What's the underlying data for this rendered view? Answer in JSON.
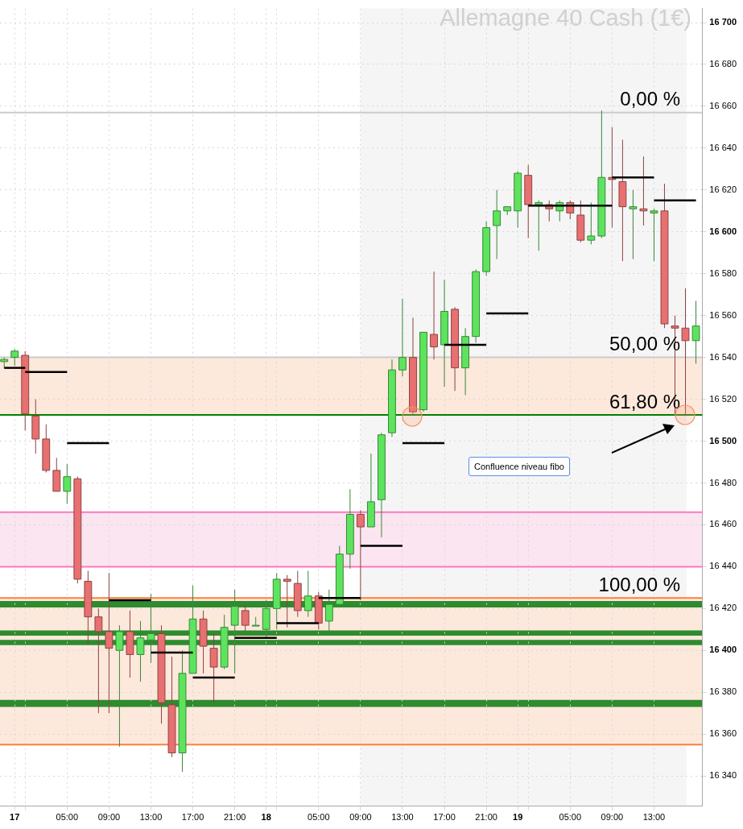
{
  "chart_data": {
    "type": "candlestick",
    "title": "Allemagne 40 Cash (1€)",
    "x": [
      "--01-16T23:00",
      "--01-17T00:00",
      "--01-17T01:00",
      "--01-17T02:00",
      "--01-17T03:00",
      "--01-17T04:00",
      "--01-17T05:00",
      "--01-17T06:00",
      "--01-17T07:00",
      "--01-17T08:00",
      "--01-17T09:00",
      "--01-17T10:00",
      "--01-17T11:00",
      "--01-17T12:00",
      "--01-17T13:00",
      "--01-17T14:00",
      "--01-17T15:00",
      "--01-17T16:00",
      "--01-17T17:00",
      "--01-17T18:00",
      "--01-17T19:00",
      "--01-17T20:00",
      "--01-17T21:00",
      "--01-17T22:00",
      "--01-17T23:00",
      "--01-18T00:00",
      "--01-18T01:00",
      "--01-18T02:00",
      "--01-18T03:00",
      "--01-18T04:00",
      "--01-18T05:00",
      "--01-18T06:00",
      "--01-18T07:00",
      "--01-18T08:00",
      "--01-18T09:00",
      "--01-18T10:00",
      "--01-18T11:00",
      "--01-18T12:00",
      "--01-18T13:00",
      "--01-18T14:00",
      "--01-18T15:00",
      "--01-18T16:00",
      "--01-18T17:00",
      "--01-18T18:00",
      "--01-18T19:00",
      "--01-18T20:00",
      "--01-18T21:00",
      "--01-18T22:00",
      "--01-18T23:00",
      "--01-19T00:00",
      "--01-19T01:00",
      "--01-19T02:00",
      "--01-19T03:00",
      "--01-19T04:00",
      "--01-19T05:00",
      "--01-19T06:00",
      "--01-19T07:00",
      "--01-19T08:00",
      "--01-19T09:00",
      "--01-19T10:00",
      "--01-19T11:00",
      "--01-19T12:00",
      "--01-19T13:00",
      "--01-19T14:00",
      "--01-19T15:00",
      "--01-19T16:00",
      "--01-19T17:00"
    ],
    "ohlc": [
      [
        16538,
        16540,
        16535,
        16539
      ],
      [
        16540,
        16544,
        16536,
        16543
      ],
      [
        16541,
        16543,
        16505,
        16513
      ],
      [
        16512,
        16520,
        16494,
        16501
      ],
      [
        16501,
        16508,
        16485,
        16486
      ],
      [
        16486,
        16492,
        16476,
        16476
      ],
      [
        16476,
        16489,
        16470,
        16483
      ],
      [
        16482,
        16483,
        16432,
        16434
      ],
      [
        16433,
        16438,
        16403,
        16416
      ],
      [
        16416,
        16420,
        16370,
        16409
      ],
      [
        16409,
        16437,
        16370,
        16401
      ],
      [
        16400,
        16412,
        16354,
        16409
      ],
      [
        16409,
        16419,
        16387,
        16398
      ],
      [
        16398,
        16414,
        16385,
        16406
      ],
      [
        16405,
        16427,
        16394,
        16408
      ],
      [
        16408,
        16412,
        16365,
        16375
      ],
      [
        16374,
        16397,
        16349,
        16351
      ],
      [
        16351,
        16400,
        16342,
        16389
      ],
      [
        16389,
        16431,
        16389,
        16415
      ],
      [
        16415,
        16419,
        16389,
        16402
      ],
      [
        16401,
        16408,
        16375,
        16392
      ],
      [
        16392,
        16417,
        16391,
        16411
      ],
      [
        16412,
        16429,
        16389,
        16421
      ],
      [
        16419,
        16422,
        16409,
        16412
      ],
      [
        16412,
        16416,
        16412,
        16412
      ],
      [
        16410,
        16424,
        16406,
        16420
      ],
      [
        16420,
        16437,
        16410,
        16434
      ],
      [
        16434,
        16436,
        16411,
        16433
      ],
      [
        16432,
        16438,
        16416,
        16419
      ],
      [
        16419,
        16438,
        16416,
        16426
      ],
      [
        16426,
        16428,
        16410,
        16413
      ],
      [
        16414,
        16429,
        16408,
        16422
      ],
      [
        16422,
        16450,
        16422,
        16446
      ],
      [
        16446,
        16477,
        16439,
        16465
      ],
      [
        16465,
        16467,
        16424,
        16459
      ],
      [
        16459,
        16494,
        16459,
        16471
      ],
      [
        16472,
        16504,
        16454,
        16503
      ],
      [
        16504,
        16539,
        16502,
        16534
      ],
      [
        16534,
        16568,
        16531,
        16540
      ],
      [
        16540,
        16559,
        16513,
        16514
      ],
      [
        16515,
        16552,
        16514,
        16552
      ],
      [
        16551,
        16581,
        16539,
        16545
      ],
      [
        16546,
        16577,
        16526,
        16562
      ],
      [
        16563,
        16564,
        16524,
        16535
      ],
      [
        16535,
        16554,
        16522,
        16550
      ],
      [
        16550,
        16582,
        16547,
        16581
      ],
      [
        16581,
        16605,
        16579,
        16602
      ],
      [
        16603,
        16620,
        16587,
        16610
      ],
      [
        16610,
        16612,
        16608,
        16612
      ],
      [
        16610,
        16629,
        16602,
        16628
      ],
      [
        16627,
        16632,
        16597,
        16613
      ],
      [
        16613,
        16615,
        16591,
        16614
      ],
      [
        16613,
        16615,
        16605,
        16611
      ],
      [
        16610,
        16615,
        16605,
        16614
      ],
      [
        16614,
        16615,
        16606,
        16609
      ],
      [
        16608,
        16615,
        16595,
        16596
      ],
      [
        16596,
        16614,
        16594,
        16598
      ],
      [
        16598,
        16658,
        16597,
        16626
      ],
      [
        16626,
        16650,
        16602,
        16625
      ],
      [
        16624,
        16644,
        16586,
        16612
      ],
      [
        16611,
        16620,
        16587,
        16612
      ],
      [
        16611,
        16636,
        16603,
        16610
      ],
      [
        16609,
        16611,
        16586,
        16610
      ],
      [
        16610,
        16623,
        16554,
        16556
      ],
      [
        16555,
        16560,
        16513,
        16554
      ],
      [
        16554,
        16573,
        16512,
        16548
      ],
      [
        16548,
        16567,
        16537,
        16555
      ]
    ],
    "colors": [
      "#5ee35e",
      "#5ee35e",
      "#e87070",
      "#e87070",
      "#e87070",
      "#e87070",
      "#5ee35e",
      "#e87070",
      "#e87070",
      "#e87070",
      "#e87070",
      "#5ee35e",
      "#e87070",
      "#5ee35e",
      "#5ee35e",
      "#e87070",
      "#e87070",
      "#5ee35e",
      "#5ee35e",
      "#e87070",
      "#e87070",
      "#5ee35e",
      "#5ee35e",
      "#e87070",
      "#5ee35e",
      "#5ee35e",
      "#5ee35e",
      "#e87070",
      "#e87070",
      "#5ee35e",
      "#e87070",
      "#5ee35e",
      "#5ee35e",
      "#5ee35e",
      "#e87070",
      "#5ee35e",
      "#5ee35e",
      "#5ee35e",
      "#5ee35e",
      "#e87070",
      "#5ee35e",
      "#e87070",
      "#5ee35e",
      "#e87070",
      "#5ee35e",
      "#5ee35e",
      "#5ee35e",
      "#5ee35e",
      "#5ee35e",
      "#5ee35e",
      "#e87070",
      "#5ee35e",
      "#e87070",
      "#5ee35e",
      "#e87070",
      "#e87070",
      "#5ee35e",
      "#5ee35e",
      "#e87070",
      "#e87070",
      "#5ee35e",
      "#e87070",
      "#5ee35e",
      "#e87070",
      "#e87070",
      "#e87070",
      "#5ee35e"
    ],
    "series": [
      {
        "type": "line",
        "color": "#000000",
        "x": [
          "--01-16T23:00",
          "--01-17T01:00"
        ],
        "values": [
          16535,
          16535
        ]
      },
      {
        "type": "line",
        "color": "#000000",
        "x": [
          "--01-17T01:00",
          "--01-17T05:00"
        ],
        "values": [
          16533,
          16533
        ]
      },
      {
        "type": "line",
        "color": "#000000",
        "x": [
          "--01-17T05:00",
          "--01-17T09:00"
        ],
        "values": [
          16499,
          16499
        ]
      },
      {
        "type": "line",
        "color": "#000000",
        "x": [
          "--01-17T09:00",
          "--01-17T13:00"
        ],
        "values": [
          16424,
          16424
        ]
      },
      {
        "type": "line",
        "color": "#000000",
        "x": [
          "--01-17T13:00",
          "--01-17T17:00"
        ],
        "values": [
          16399,
          16399
        ]
      },
      {
        "type": "line",
        "color": "#000000",
        "x": [
          "--01-17T17:00",
          "--01-17T21:00"
        ],
        "values": [
          16387,
          16387
        ]
      },
      {
        "type": "line",
        "color": "#000000",
        "x": [
          "--01-17T21:00",
          "--01-18T01:00"
        ],
        "values": [
          16406,
          16406
        ]
      },
      {
        "type": "line",
        "color": "#000000",
        "x": [
          "--01-18T01:00",
          "--01-18T05:00"
        ],
        "values": [
          16413,
          16413
        ]
      },
      {
        "type": "line",
        "color": "#000000",
        "x": [
          "--01-18T05:00",
          "--01-18T09:00"
        ],
        "values": [
          16425,
          16425
        ]
      },
      {
        "type": "line",
        "color": "#000000",
        "x": [
          "--01-18T09:00",
          "--01-18T13:00"
        ],
        "values": [
          16450,
          16450
        ]
      },
      {
        "type": "line",
        "color": "#000000",
        "x": [
          "--01-18T13:00",
          "--01-18T17:00"
        ],
        "values": [
          16499,
          16499
        ]
      },
      {
        "type": "line",
        "color": "#000000",
        "x": [
          "--01-18T17:00",
          "--01-18T21:00"
        ],
        "values": [
          16546,
          16546
        ]
      },
      {
        "type": "line",
        "color": "#000000",
        "x": [
          "--01-18T21:00",
          "--01-19T01:00"
        ],
        "values": [
          16561,
          16561
        ]
      },
      {
        "type": "line",
        "color": "#000000",
        "x": [
          "--01-19T01:00",
          "--01-19T09:00"
        ],
        "values": [
          16612.5,
          16612.5
        ]
      },
      {
        "type": "line",
        "color": "#000000",
        "x": [
          "--01-19T09:00",
          "--01-19T13:00"
        ],
        "values": [
          16626,
          16626
        ]
      },
      {
        "type": "line",
        "color": "#000000",
        "x": [
          "--01-19T13:00",
          "--01-19T17:00"
        ],
        "values": [
          16615,
          16615
        ]
      }
    ],
    "xlim": [
      "--01-16T22:36",
      "--01-19T17:36"
    ],
    "xticks": [
      {
        "value": "--01-17T00:00",
        "label": "17"
      },
      {
        "value": "--01-17T01:00",
        "label": null
      },
      {
        "value": "--01-17T05:00",
        "label": "05:00"
      },
      {
        "value": "--01-17T09:00",
        "label": "09:00"
      },
      {
        "value": "--01-17T13:00",
        "label": "13:00"
      },
      {
        "value": "--01-17T17:00",
        "label": "17:00"
      },
      {
        "value": "--01-17T21:00",
        "label": "21:00"
      },
      {
        "value": "--01-18T00:00",
        "label": "18"
      },
      {
        "value": "--01-18T01:00",
        "label": null
      },
      {
        "value": "--01-18T05:00",
        "label": "05:00"
      },
      {
        "value": "--01-18T09:00",
        "label": "09:00"
      },
      {
        "value": "--01-18T13:00",
        "label": "13:00"
      },
      {
        "value": "--01-18T17:00",
        "label": "17:00"
      },
      {
        "value": "--01-18T21:00",
        "label": "21:00"
      },
      {
        "value": "--01-19T00:00",
        "label": "19"
      },
      {
        "value": "--01-19T01:00",
        "label": null
      },
      {
        "value": "--01-19T05:00",
        "label": "05:00"
      },
      {
        "value": "--01-19T09:00",
        "label": "09:00"
      },
      {
        "value": "--01-19T13:00",
        "label": "13:00"
      }
    ],
    "ylim": [
      16325.5,
      16706.7
    ],
    "yticks": [
      {
        "value": 16340,
        "label": "16 340"
      },
      {
        "value": 16360,
        "label": "16 360"
      },
      {
        "value": 16380,
        "label": "16 380"
      },
      {
        "value": 16400,
        "label": "16 400"
      },
      {
        "value": 16420,
        "label": "16 420"
      },
      {
        "value": 16440,
        "label": "16 440"
      },
      {
        "value": 16460,
        "label": "16 460"
      },
      {
        "value": 16480,
        "label": "16 480"
      },
      {
        "value": 16500,
        "label": "16 500"
      },
      {
        "value": 16520,
        "label": "16 520"
      },
      {
        "value": 16540,
        "label": "16 540"
      },
      {
        "value": 16560,
        "label": "16 560"
      },
      {
        "value": 16580,
        "label": "16 580"
      },
      {
        "value": 16600,
        "label": "16 600"
      },
      {
        "value": 16620,
        "label": "16 620"
      },
      {
        "value": 16640,
        "label": "16 640"
      },
      {
        "value": 16660,
        "label": "16 660"
      },
      {
        "value": 16680,
        "label": "16 680"
      },
      {
        "value": 16700,
        "label": "16 700"
      }
    ],
    "grid": true,
    "marker": "none",
    "bands": [
      {
        "axis": "x",
        "from": "--01-18T09:00",
        "to": "--01-19T16:06",
        "color": "#f5f5f5"
      },
      {
        "axis": "y",
        "from": 16512.5,
        "to": 16540,
        "color": "#fde8dc"
      },
      {
        "axis": "y",
        "from": 16355,
        "to": 16425,
        "color": "#fde8dc"
      },
      {
        "axis": "y",
        "from": 16440,
        "to": 16466,
        "color": "#fbe5f1"
      },
      {
        "axis": "y",
        "from": 16420.5,
        "to": 16423.6,
        "color": "#2e8b2e"
      },
      {
        "axis": "y",
        "from": 16407,
        "to": 16409.5,
        "color": "#2e8b2e"
      },
      {
        "axis": "y",
        "from": 16402.5,
        "to": 16405,
        "color": "#2e8b2e"
      },
      {
        "axis": "y",
        "from": 16373,
        "to": 16376.3,
        "color": "#2e8b2e"
      }
    ],
    "ref_lines": [
      {
        "axis": "y",
        "value": 16657,
        "color": "#cccccc"
      },
      {
        "axis": "y",
        "value": 16540,
        "color": "#cccccc"
      },
      {
        "axis": "y",
        "value": 16512.5,
        "color": "#008000"
      },
      {
        "axis": "y",
        "value": 16425,
        "color": "#ff7f3f"
      },
      {
        "axis": "y",
        "value": 16355,
        "color": "#ff7f3f"
      },
      {
        "axis": "y",
        "value": 16440,
        "color": "#ff77c0"
      },
      {
        "axis": "y",
        "value": 16466,
        "color": "#ff77c0"
      }
    ],
    "annotations": [
      {
        "text": "0,00 %",
        "x": "--01-19T15:30",
        "y": 16657
      },
      {
        "text": "50,00 %",
        "x": "--01-19T15:30",
        "y": 16540
      },
      {
        "text": "61,80 %",
        "x": "--01-19T15:30",
        "y": 16512.5
      },
      {
        "text": "100,00 %",
        "x": "--01-19T15:30",
        "y": 16425
      },
      "Confluence niveau fibo"
    ]
  }
}
